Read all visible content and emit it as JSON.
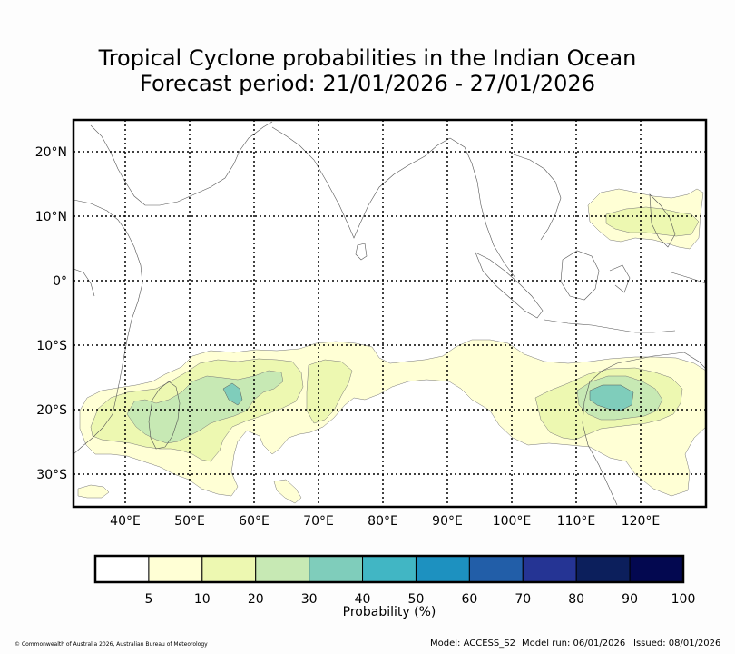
{
  "title_line1": "Tropical Cyclone probabilities in the Indian Ocean",
  "title_line2": "Forecast period: 21/01/2026 - 27/01/2026",
  "lat_labels": [
    "20°N",
    "10°N",
    "0°",
    "10°S",
    "20°S",
    "30°S"
  ],
  "lon_labels": [
    "40°E",
    "50°E",
    "60°E",
    "70°E",
    "80°E",
    "90°E",
    "100°E",
    "110°E",
    "120°E"
  ],
  "colorbar": {
    "label": "Probability (%)",
    "ticks": [
      "5",
      "10",
      "20",
      "30",
      "40",
      "50",
      "60",
      "70",
      "80",
      "90",
      "100"
    ],
    "colors": [
      "#ffffff",
      "#ffffd5",
      "#edf8b1",
      "#c7e9b4",
      "#7fcdbb",
      "#41b6c4",
      "#1d91c0",
      "#225ea8",
      "#253494",
      "#0c1f5c",
      "#030850"
    ]
  },
  "footer": {
    "copyright": "© Commonwealth of Australia 2026, Australian Bureau of Meteorology",
    "model": "Model: ACCESS_S2",
    "run": "Model run: 06/01/2026",
    "issued": "Issued: 08/01/2026"
  }
}
